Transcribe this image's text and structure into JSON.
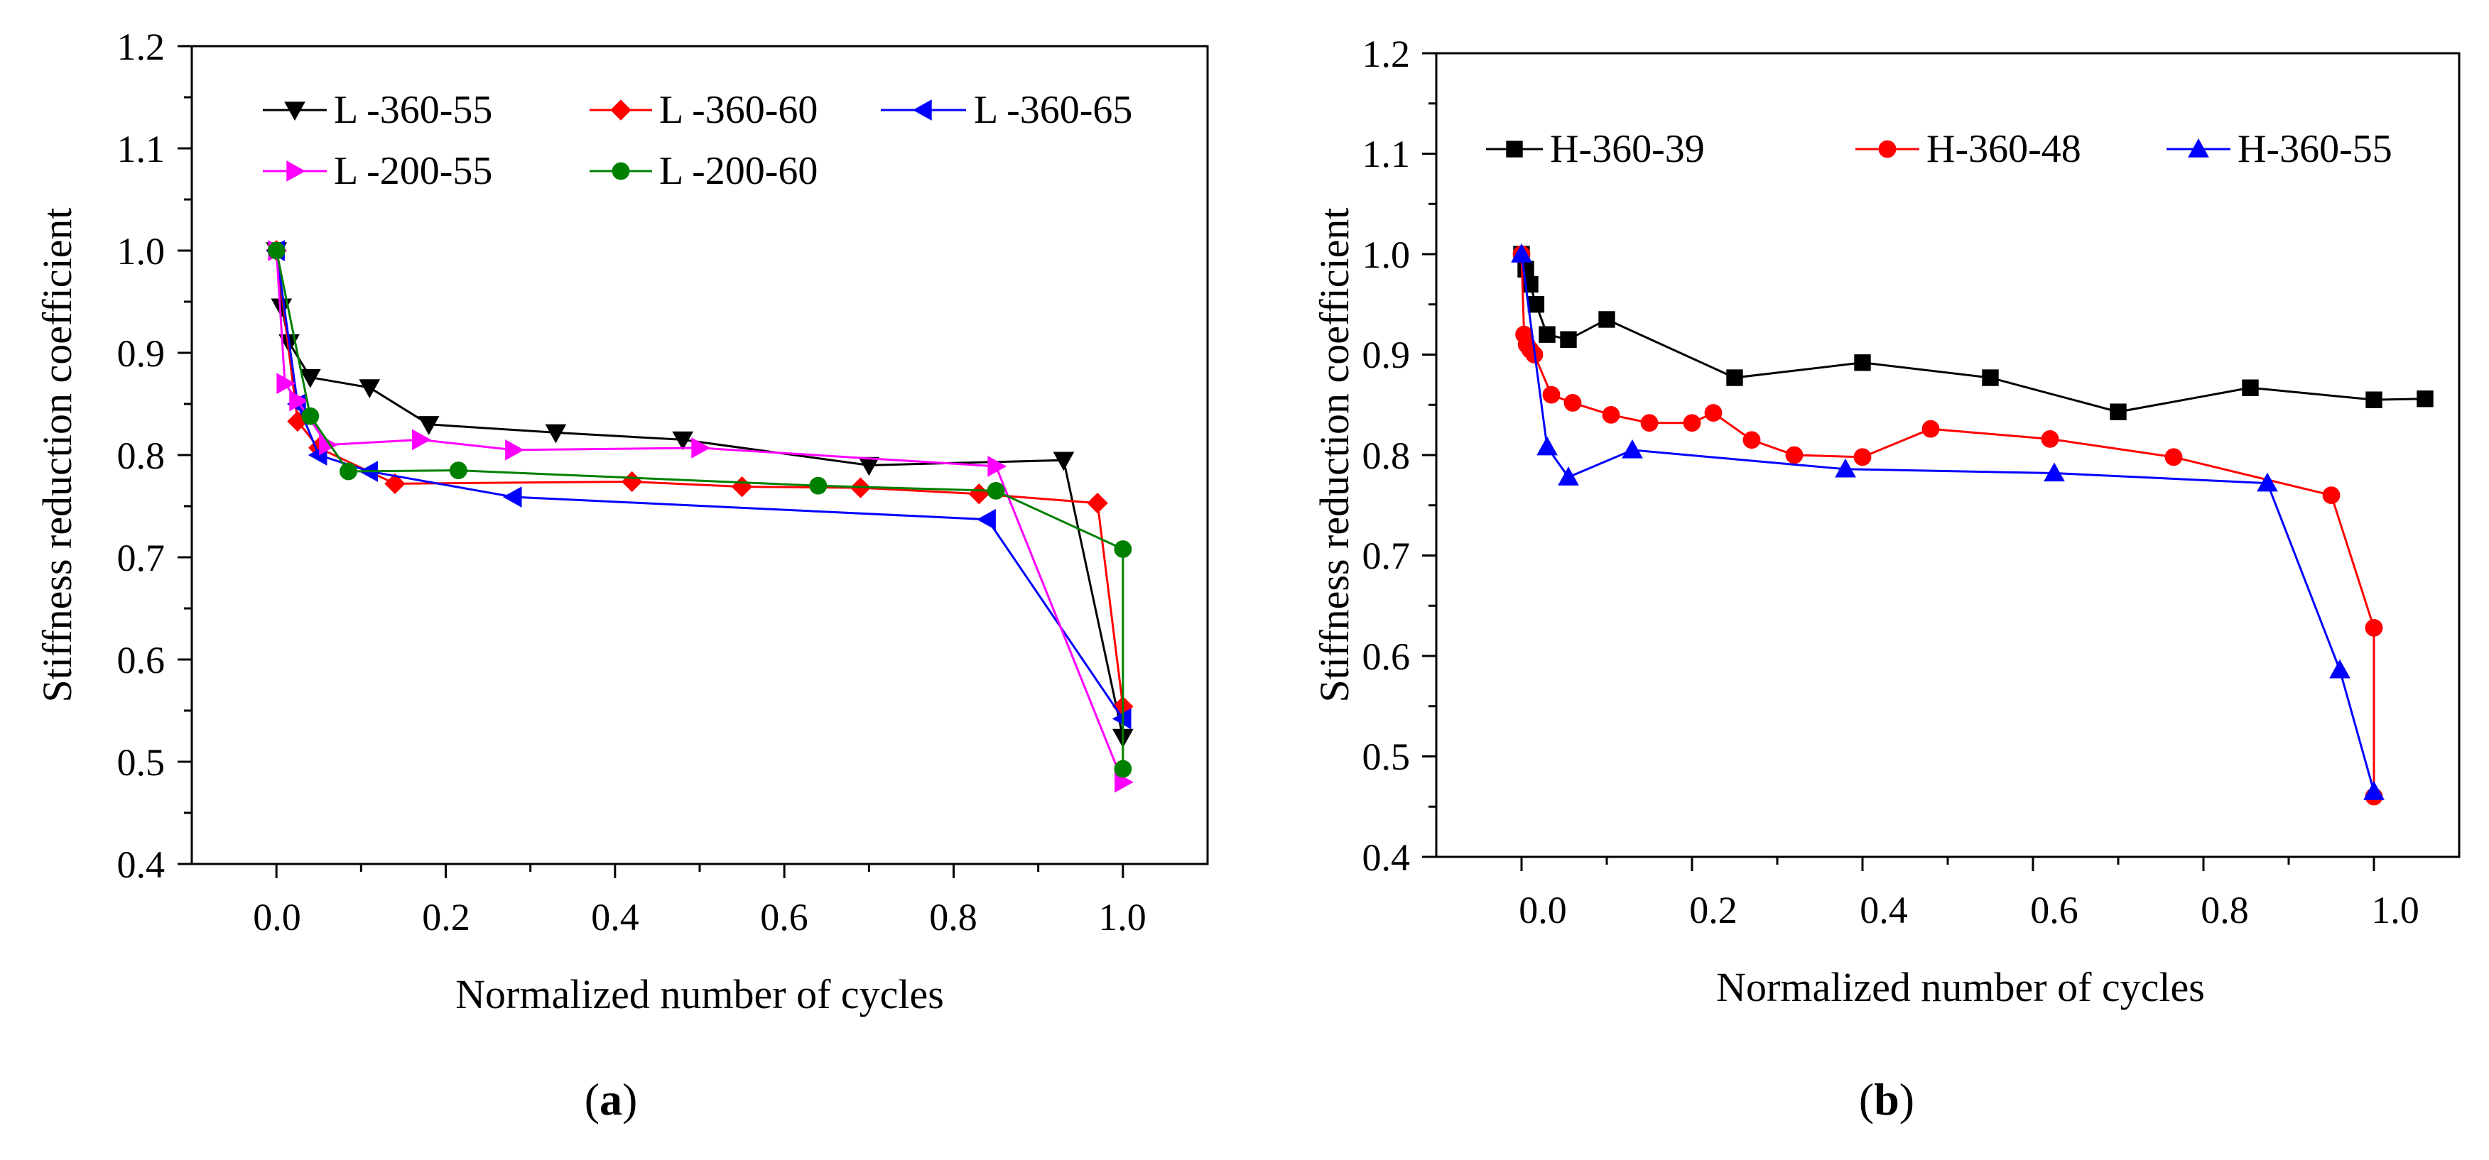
{
  "chart_data": [
    {
      "type": "line",
      "xlabel": "Normalized number of cycles",
      "ylabel": "Stiffness reduction coefficient",
      "xlim": [
        -0.1,
        1.1
      ],
      "ylim": [
        0.4,
        1.2
      ],
      "xticks": [
        0.0,
        0.2,
        0.4,
        0.6,
        0.8,
        1.0
      ],
      "yticks": [
        0.4,
        0.5,
        0.6,
        0.7,
        0.8,
        0.9,
        1.0,
        1.1,
        1.2
      ],
      "xtick_labels": [
        "0.0",
        "0.2",
        "0.4",
        "0.6",
        "0.8",
        "1.0"
      ],
      "ytick_labels": [
        "0.4",
        "0.5",
        "0.6",
        "0.7",
        "0.8",
        "0.9",
        "1.0",
        "1.1",
        "1.2"
      ],
      "legend_position": "top",
      "caption": {
        "open": "(",
        "letter": "a",
        "close": ")"
      },
      "series": [
        {
          "name": "L -360-55",
          "color": "#000000",
          "marker": "triangle-down",
          "x": [
            0.0,
            0.006,
            0.015,
            0.04,
            0.11,
            0.18,
            0.33,
            0.48,
            0.7,
            0.93,
            1.0
          ],
          "y": [
            1.0,
            0.945,
            0.91,
            0.876,
            0.866,
            0.83,
            0.822,
            0.815,
            0.79,
            0.795,
            0.524
          ]
        },
        {
          "name": "L -360-60",
          "color": "#ff0000",
          "marker": "diamond",
          "x": [
            0.0,
            0.025,
            0.05,
            0.14,
            0.42,
            0.55,
            0.69,
            0.83,
            0.97,
            1.0
          ],
          "y": [
            1.0,
            0.833,
            0.807,
            0.772,
            0.774,
            0.769,
            0.768,
            0.762,
            0.753,
            0.554
          ]
        },
        {
          "name": "L -360-65",
          "color": "#0000ff",
          "marker": "triangle-left",
          "x": [
            0.0,
            0.025,
            0.05,
            0.11,
            0.28,
            0.84,
            1.0
          ],
          "y": [
            1.0,
            0.85,
            0.8,
            0.784,
            0.759,
            0.737,
            0.542
          ]
        },
        {
          "name": "L -200-55",
          "color": "#ff00ff",
          "marker": "triangle-right",
          "x": [
            0.0,
            0.01,
            0.025,
            0.06,
            0.17,
            0.28,
            0.5,
            0.85,
            1.0
          ],
          "y": [
            1.0,
            0.87,
            0.853,
            0.81,
            0.815,
            0.805,
            0.807,
            0.789,
            0.48
          ]
        },
        {
          "name": "L -200-60",
          "color": "#008000",
          "marker": "circle",
          "x": [
            0.0,
            0.04,
            0.085,
            0.215,
            0.64,
            0.85,
            1.0,
            1.0
          ],
          "y": [
            1.0,
            0.838,
            0.784,
            0.785,
            0.77,
            0.765,
            0.708,
            0.493
          ]
        }
      ]
    },
    {
      "type": "line",
      "xlabel": "Normalized number of cycles",
      "ylabel": "Stiffness reduction coefficient",
      "xlim": [
        -0.1,
        1.1
      ],
      "ylim": [
        0.4,
        1.2
      ],
      "xticks": [
        0.0,
        0.2,
        0.4,
        0.6,
        0.8,
        1.0
      ],
      "yticks": [
        0.4,
        0.5,
        0.6,
        0.7,
        0.8,
        0.9,
        1.0,
        1.1,
        1.2
      ],
      "xtick_labels": [
        "0.0",
        "0.2",
        "0.4",
        "0.6",
        "0.8",
        "1.0"
      ],
      "ytick_labels": [
        "0.4",
        "0.5",
        "0.6",
        "0.7",
        "0.8",
        "0.9",
        "1.0",
        "1.1",
        "1.2"
      ],
      "legend_position": "top",
      "caption": {
        "open": "(",
        "letter": "b",
        "close": ")"
      },
      "series": [
        {
          "name": "H-360-39",
          "color": "#000000",
          "marker": "square",
          "x": [
            0.0,
            0.005,
            0.01,
            0.017,
            0.03,
            0.055,
            0.1,
            0.25,
            0.4,
            0.55,
            0.7,
            0.855,
            1.0,
            1.06
          ],
          "y": [
            1.0,
            0.985,
            0.97,
            0.95,
            0.92,
            0.915,
            0.935,
            0.877,
            0.892,
            0.877,
            0.843,
            0.867,
            0.855,
            0.856
          ]
        },
        {
          "name": "H-360-48",
          "color": "#ff0000",
          "marker": "circle",
          "x": [
            0.0,
            0.003,
            0.006,
            0.01,
            0.015,
            0.035,
            0.06,
            0.105,
            0.15,
            0.2,
            0.225,
            0.27,
            0.32,
            0.4,
            0.48,
            0.62,
            0.765,
            0.95,
            1.0,
            1.0
          ],
          "y": [
            1.0,
            0.92,
            0.91,
            0.905,
            0.9,
            0.86,
            0.852,
            0.84,
            0.832,
            0.832,
            0.842,
            0.815,
            0.8,
            0.798,
            0.826,
            0.816,
            0.798,
            0.76,
            0.628,
            0.46
          ]
        },
        {
          "name": "H-360-55",
          "color": "#0000ff",
          "marker": "triangle-up",
          "x": [
            0.0,
            0.03,
            0.055,
            0.13,
            0.38,
            0.625,
            0.875,
            0.96,
            1.0
          ],
          "y": [
            1.0,
            0.808,
            0.778,
            0.805,
            0.786,
            0.782,
            0.772,
            0.586,
            0.465
          ]
        }
      ]
    }
  ]
}
